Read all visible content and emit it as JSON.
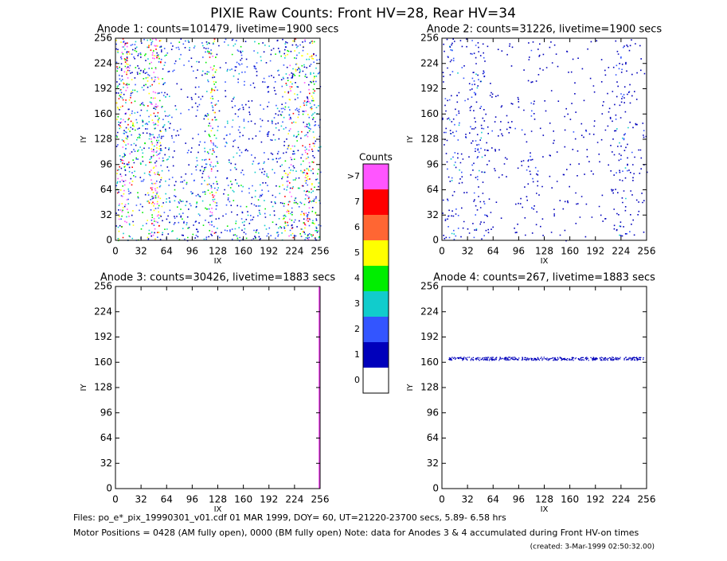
{
  "chart_data": {
    "type": "heatmap",
    "title": "PIXIE Raw Counts:  Front HV=28, Rear HV=34",
    "panels": [
      {
        "title": "Anode 1: counts=101479, livetime=1900 secs",
        "xlabel": "IX",
        "ylabel": "IY",
        "xlim": [
          0,
          256
        ],
        "ylim": [
          0,
          256
        ],
        "xticks": [
          0,
          32,
          64,
          96,
          128,
          160,
          192,
          224,
          256
        ],
        "yticks": [
          0,
          32,
          64,
          96,
          128,
          160,
          192,
          224,
          256
        ]
      },
      {
        "title": "Anode 2: counts=31226, livetime=1900 secs",
        "xlabel": "IX",
        "ylabel": "IY",
        "xlim": [
          0,
          256
        ],
        "ylim": [
          0,
          256
        ],
        "xticks": [
          0,
          32,
          64,
          96,
          128,
          160,
          192,
          224,
          256
        ],
        "yticks": [
          0,
          32,
          64,
          96,
          128,
          160,
          192,
          224,
          256
        ]
      },
      {
        "title": "Anode 3: counts=30426, livetime=1883 secs",
        "xlabel": "IX",
        "ylabel": "IY",
        "xlim": [
          0,
          256
        ],
        "ylim": [
          0,
          256
        ],
        "xticks": [
          0,
          32,
          64,
          96,
          128,
          160,
          192,
          224,
          256
        ],
        "yticks": [
          0,
          32,
          64,
          96,
          128,
          160,
          192,
          224,
          256
        ]
      },
      {
        "title": "Anode 4: counts=267, livetime=1883 secs",
        "xlabel": "IX",
        "ylabel": "IY",
        "xlim": [
          0,
          256
        ],
        "ylim": [
          0,
          256
        ],
        "xticks": [
          0,
          32,
          64,
          96,
          128,
          160,
          192,
          224,
          256
        ],
        "yticks": [
          0,
          32,
          64,
          96,
          128,
          160,
          192,
          224,
          256
        ]
      }
    ],
    "colorbar": {
      "title": "Counts",
      "labels": [
        ">7",
        "7",
        "6",
        "5",
        "4",
        "3",
        "2",
        "1",
        "0"
      ],
      "colors": [
        "#ff55ff",
        "#ff0000",
        "#ff6633",
        "#ffff00",
        "#00ee00",
        "#11cccc",
        "#3355ff",
        "#0000bb",
        "#ffffff"
      ]
    },
    "footer": [
      "Files: po_e*_pix_19990301_v01.cdf    01 MAR 1999, DOY= 60, UT=21220-23700 secs,  5.89- 6.58 hrs",
      "Motor Positions = 0428 (AM fully open), 0000 (BM fully open)    Note: data for Anodes 3 & 4 accumulated during Front HV-on times",
      "(created:  3-Mar-1999 02:50:32.00)"
    ]
  }
}
